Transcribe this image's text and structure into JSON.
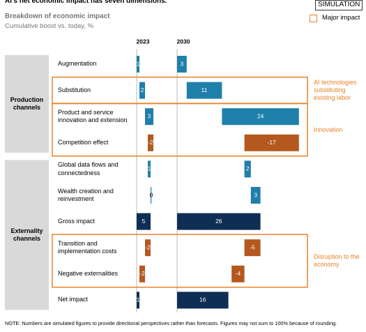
{
  "chart_data": {
    "type": "waterfall",
    "title": "AI's net economic impact has seven dimensions.",
    "badge": "SIMULATION",
    "subtitle": "Breakdown of economic impact",
    "y_label": "Cumulative boost vs. today, %",
    "categories": [
      "Augmentation",
      "Substitution",
      "Product and service innovation and extension",
      "Competition effect",
      "Global data flows and connectedness",
      "Wealth creation and reinvestment",
      "Gross impact",
      "Transition and implementation costs",
      "Negative externalities",
      "Net impact"
    ],
    "series": [
      {
        "name": "2023",
        "values": [
          1,
          2,
          3,
          -2,
          1,
          0,
          5,
          -2,
          -2,
          1
        ]
      },
      {
        "name": "2030",
        "values": [
          3,
          11,
          24,
          -17,
          2,
          3,
          26,
          -5,
          -4,
          16
        ]
      }
    ],
    "is_total": [
      false,
      false,
      false,
      false,
      false,
      false,
      true,
      false,
      false,
      true
    ],
    "colors": {
      "increase": "#1f7fab",
      "decrease": "#b4581f",
      "total": "#0f2e54"
    },
    "groups": [
      {
        "label": "Production channels",
        "rows": [
          0,
          3
        ]
      },
      {
        "label": "Externality channels",
        "rows": [
          4,
          9
        ]
      }
    ],
    "legend": {
      "label": "Major impact",
      "color": "#e8832a"
    },
    "annotations": [
      {
        "text": "AI technologies substituting existing labor",
        "rows": [
          1,
          1
        ]
      },
      {
        "text": "Innovation",
        "rows": [
          2,
          3
        ]
      },
      {
        "text": "Disruption to the economy",
        "rows": [
          7,
          8
        ]
      }
    ],
    "note": "NOTE: Numbers are simulated figures to provide directional perspectives rather than forecasts. Figures may not sum to 100% because of rounding."
  }
}
